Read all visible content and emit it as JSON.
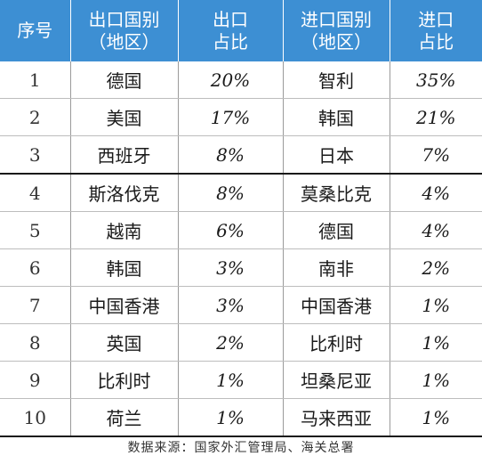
{
  "table": {
    "headers": [
      {
        "line1": "序号",
        "line2": ""
      },
      {
        "line1": "出口国别",
        "line2": "（地区）"
      },
      {
        "line1": "出口",
        "line2": "占比"
      },
      {
        "line1": "进口国别",
        "line2": "（地区）"
      },
      {
        "line1": "进口",
        "line2": "占比"
      }
    ],
    "rows": [
      {
        "no": "1",
        "export_country": "德国",
        "export_share": "20%",
        "import_country": "智利",
        "import_share": "35%"
      },
      {
        "no": "2",
        "export_country": "美国",
        "export_share": "17%",
        "import_country": "韩国",
        "import_share": "21%"
      },
      {
        "no": "3",
        "export_country": "西班牙",
        "export_share": "8%",
        "import_country": "日本",
        "import_share": "7%"
      },
      {
        "no": "4",
        "export_country": "斯洛伐克",
        "export_share": "8%",
        "import_country": "莫桑比克",
        "import_share": "4%"
      },
      {
        "no": "5",
        "export_country": "越南",
        "export_share": "6%",
        "import_country": "德国",
        "import_share": "4%"
      },
      {
        "no": "6",
        "export_country": "韩国",
        "export_share": "3%",
        "import_country": "南非",
        "import_share": "2%"
      },
      {
        "no": "7",
        "export_country": "中国香港",
        "export_share": "3%",
        "import_country": "中国香港",
        "import_share": "1%"
      },
      {
        "no": "8",
        "export_country": "英国",
        "export_share": "2%",
        "import_country": "比利时",
        "import_share": "1%"
      },
      {
        "no": "9",
        "export_country": "比利时",
        "export_share": "1%",
        "import_country": "坦桑尼亚",
        "import_share": "1%"
      },
      {
        "no": "10",
        "export_country": "荷兰",
        "export_share": "1%",
        "import_country": "马来西亚",
        "import_share": "1%"
      }
    ]
  },
  "source": "数据来源：国家外汇管理局、海关总署",
  "colors": {
    "header_bg": "#3d8fd3",
    "header_text": "#ffffff"
  }
}
